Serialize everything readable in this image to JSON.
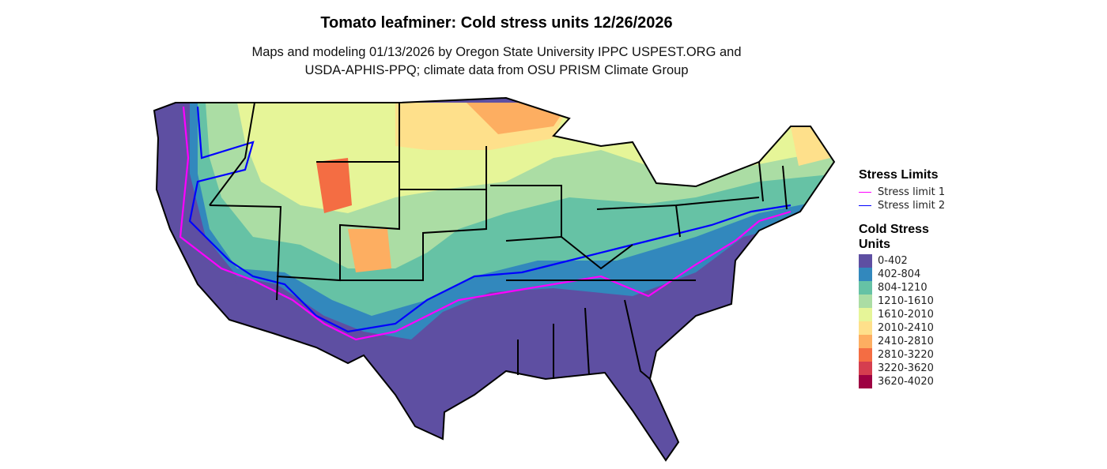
{
  "title": "Tomato leafminer: Cold stress units 12/26/2026",
  "subtitle_line1": "Maps and modeling 01/13/2026 by Oregon State University IPPC USPEST.ORG and",
  "subtitle_line2": "USDA-APHIS-PPQ; climate data from OSU PRISM Climate Group",
  "legend_limits": {
    "title": "Stress Limits",
    "items": [
      {
        "label": "Stress limit 1",
        "color": "#FF00FF"
      },
      {
        "label": "Stress limit 2",
        "color": "#0000FF"
      }
    ]
  },
  "legend_units": {
    "title_line1": "Cold Stress",
    "title_line2": "Units",
    "items": [
      {
        "label": "0-402",
        "color": "#5E4FA2"
      },
      {
        "label": "402-804",
        "color": "#3288BD"
      },
      {
        "label": "804-1210",
        "color": "#66C2A5"
      },
      {
        "label": "1210-1610",
        "color": "#ABDDA4"
      },
      {
        "label": "1610-2010",
        "color": "#E6F598"
      },
      {
        "label": "2010-2410",
        "color": "#FEE08B"
      },
      {
        "label": "2410-2810",
        "color": "#FDAE61"
      },
      {
        "label": "2810-3220",
        "color": "#F46D43"
      },
      {
        "label": "3220-3620",
        "color": "#D53E4F"
      },
      {
        "label": "3620-4020",
        "color": "#9E0142"
      }
    ]
  }
}
